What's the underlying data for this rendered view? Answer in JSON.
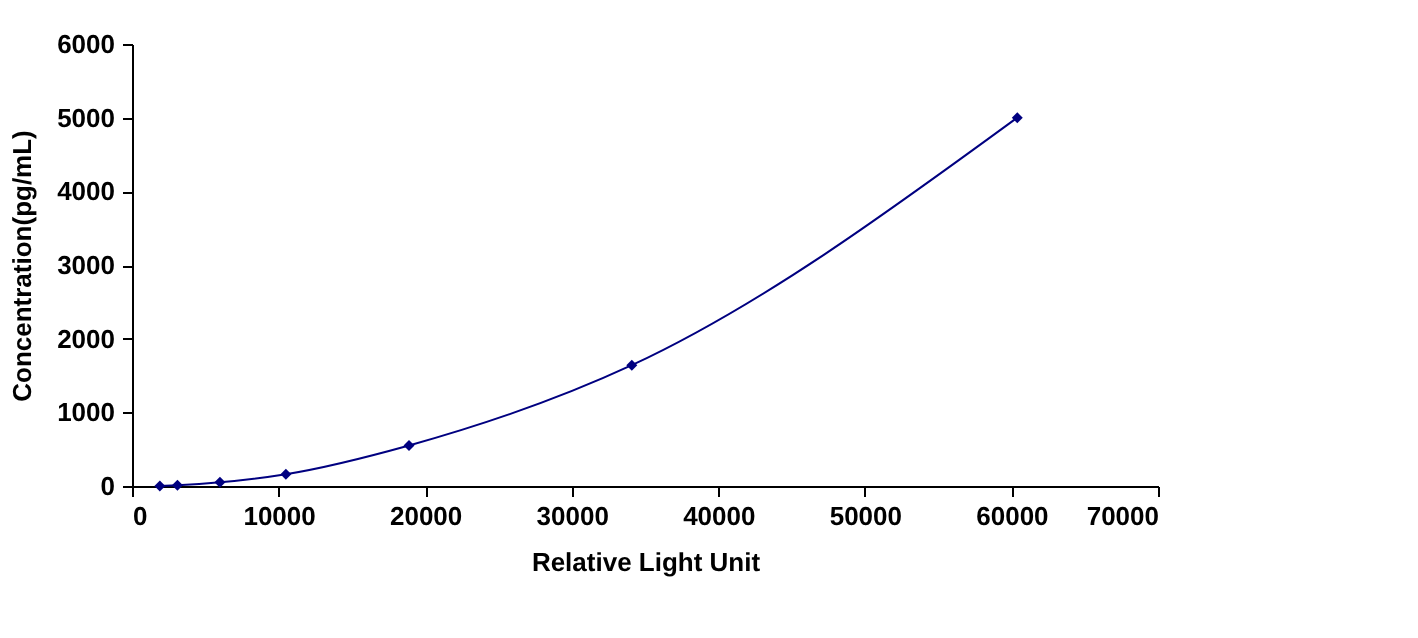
{
  "chart_data": {
    "type": "line",
    "xlabel": "Relative Light Unit",
    "ylabel": "Concentration(pg/mL)",
    "x": [
      1900,
      3100,
      6000,
      10500,
      18900,
      34100,
      60400
    ],
    "series": [
      {
        "color": "#000080",
        "values": [
          0,
          10,
          50,
          160,
          550,
          1640,
          5000
        ]
      }
    ],
    "xlim": [
      0,
      70000
    ],
    "xticks": [
      0,
      10000,
      20000,
      30000,
      40000,
      50000,
      60000,
      70000
    ],
    "ylim": [
      0,
      6000
    ],
    "yticks": [
      0,
      1000,
      2000,
      3000,
      4000,
      5000,
      6000
    ],
    "grid": false,
    "marker": "diamond",
    "line_style": "solid"
  }
}
